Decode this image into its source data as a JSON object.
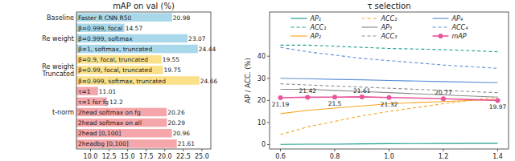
{
  "chart_data": [
    {
      "type": "bar",
      "orientation": "horizontal",
      "title": "mAP on val (%)",
      "categories": [
        "Faster R CNN R50",
        "β=0.999, focal",
        "β=0.999, softmax",
        "β=1, softmax, truncated",
        "β=0.9, focal, truncated",
        "β=0.99, focal, truncated",
        "β=0.999, softmax, truncated",
        "τ=1",
        "τ=1 for fg",
        "2head softmax on fg",
        "2head softmax on all",
        "2head [0,100]",
        "2headbg [0,100]"
      ],
      "values": [
        20.98,
        14.57,
        23.07,
        24.44,
        19.55,
        19.75,
        24.66,
        11.01,
        12.2,
        20.26,
        20.29,
        20.96,
        21.61
      ],
      "colors": [
        "#a9d8ea",
        "#a9d8ea",
        "#a9d8ea",
        "#a9d8ea",
        "#fbe08a",
        "#fbe08a",
        "#fbe08a",
        "#f4a6aa",
        "#f4a6aa",
        "#f4a6aa",
        "#f4a6aa",
        "#f4a6aa",
        "#f4a6aa"
      ],
      "group_labels": [
        "Baseline",
        null,
        "Re weight",
        null,
        null,
        "Re weight\nTruncated",
        null,
        null,
        null,
        "t-norm",
        null,
        null,
        null
      ],
      "xlim": [
        8.1,
        26.2
      ],
      "xticks": [
        {
          "value": 10,
          "label": "10.0"
        },
        12.5,
        {
          "value": 15,
          "label": "15.0"
        },
        17.5,
        {
          "value": 20,
          "label": "20.0"
        },
        22.5,
        {
          "value": 25,
          "label": "25.0"
        }
      ],
      "data_labels": true,
      "grid": false
    },
    {
      "type": "line",
      "title": "τ selection",
      "ylabel": "AP / ACC. (%)",
      "x": [
        0.6,
        0.7,
        0.8,
        0.9,
        1.0,
        1.2,
        1.4
      ],
      "series": [
        {
          "name": "AP₁",
          "color": "#1a9e8c",
          "line_style": "solid",
          "values": [
            0.1,
            0.2,
            0.2,
            0.3,
            0.4,
            0.5,
            0.6
          ]
        },
        {
          "name": "ACC₁",
          "color": "#1a9e8c",
          "line_style": "dashed",
          "values": [
            45,
            45,
            44.5,
            44,
            43.5,
            43,
            42
          ]
        },
        {
          "name": "AP₂",
          "color": "#f5a623",
          "line_style": "solid",
          "values": [
            14,
            15.5,
            16.5,
            17.5,
            18.5,
            19.5,
            20.5
          ]
        },
        {
          "name": "ACC₂",
          "color": "#f5a623",
          "line_style": "dashed",
          "values": [
            4.5,
            8,
            10.5,
            13,
            15,
            18.5,
            21.5
          ]
        },
        {
          "name": "AP₃",
          "color": "#8c8c8c",
          "line_style": "solid",
          "values": [
            25,
            25,
            24.5,
            24,
            23.5,
            22.5,
            21.5
          ]
        },
        {
          "name": "ACC₃",
          "color": "#8c8c8c",
          "line_style": "dashed",
          "values": [
            27.5,
            27,
            26.5,
            26,
            25.5,
            24.5,
            23.5
          ]
        },
        {
          "name": "AP₄",
          "color": "#5b8fd6",
          "line_style": "solid",
          "values": [
            30,
            29.8,
            29.5,
            29.3,
            29,
            28.5,
            28
          ]
        },
        {
          "name": "ACC₄",
          "color": "#5b8fd6",
          "line_style": "dashed",
          "values": [
            44,
            42,
            40.5,
            39,
            38,
            36,
            34.5
          ]
        },
        {
          "name": "mAP",
          "color": "#e8559a",
          "line_style": "solid",
          "marker": "circle",
          "data_labels": true,
          "values": [
            21.19,
            21.42,
            21.5,
            21.61,
            21.32,
            20.77,
            19.97
          ]
        }
      ],
      "xlim": [
        0.56,
        1.44
      ],
      "xticks": [
        0.6,
        0.8,
        {
          "value": 1,
          "label": "1.0"
        },
        1.2,
        1.4
      ],
      "ylim": [
        -2,
        60
      ],
      "yticks": [
        0,
        10,
        20,
        30,
        40
      ],
      "legend": "upper center",
      "grid": false
    }
  ]
}
